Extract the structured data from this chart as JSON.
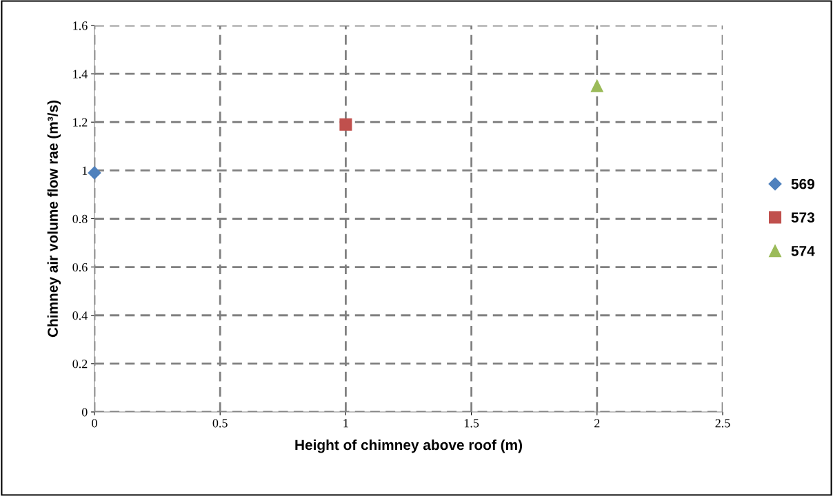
{
  "chart_data": {
    "type": "scatter",
    "xlabel": "Height of chimney above roof (m)",
    "ylabel": "Chimney air volume flow rae (m³/s)",
    "series": [
      {
        "name": "569",
        "color": "#4f81bd",
        "marker": "diamond",
        "x": [
          0
        ],
        "values": [
          0.99
        ]
      },
      {
        "name": "573",
        "color": "#c0504d",
        "marker": "square",
        "x": [
          1
        ],
        "values": [
          1.19
        ]
      },
      {
        "name": "574",
        "color": "#9bbb59",
        "marker": "triangle",
        "x": [
          2
        ],
        "values": [
          1.35
        ]
      }
    ],
    "xlim": [
      0,
      2.5
    ],
    "xticks": [
      0,
      0.5,
      1,
      1.5,
      2,
      2.5
    ],
    "ylim": [
      0,
      1.6
    ],
    "yticks": [
      0,
      0.2,
      0.4,
      0.6,
      0.8,
      1,
      1.2,
      1.4,
      1.6
    ],
    "grid": true,
    "legend": "right"
  }
}
